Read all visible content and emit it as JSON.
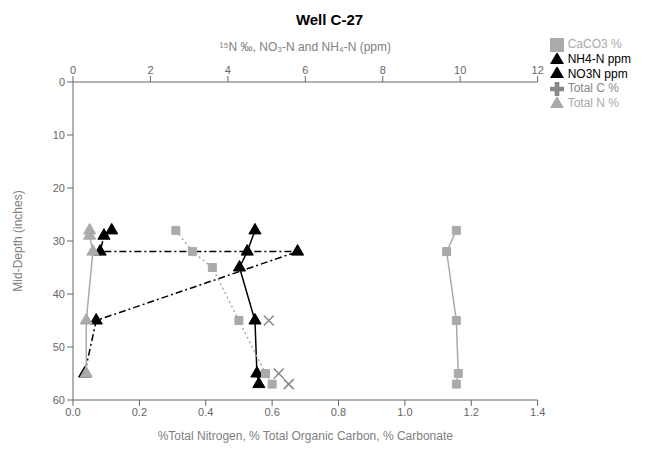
{
  "chart_data": {
    "type": "line",
    "title": "Well C-27",
    "xlabel": "%Total Nitrogen, % Total Organic Carbon, % Carbonate",
    "x2label": "¹⁵N ‰, NO₃-N and NH₄-N (ppm)",
    "ylabel": "Mid-Depth (inches)",
    "xlim": [
      0.0,
      1.4
    ],
    "xticks": [
      {
        "value": 0,
        "label": "0.0"
      },
      0.2,
      0.4,
      0.6,
      0.8,
      {
        "value": 1,
        "label": "1.0"
      },
      1.2,
      1.4
    ],
    "x2lim": [
      0,
      12
    ],
    "x2ticks": [
      0,
      2,
      4,
      6,
      8,
      10,
      12
    ],
    "ylim": [
      0,
      60
    ],
    "yticks": [
      0,
      10,
      20,
      30,
      40,
      50,
      60
    ],
    "grid": false,
    "legend": "upper right",
    "series": [
      {
        "name": "NO3N ppm",
        "axis": "x2",
        "x": [
          1.0,
          0.8,
          0.7,
          5.8,
          0.6,
          0.3
        ],
        "y": [
          28,
          29,
          32,
          32,
          45,
          55
        ],
        "color": "black",
        "line_style": "dashdot",
        "marker": "triangle"
      },
      {
        "name": "Total N %",
        "x": [
          0.05,
          0.05,
          0.06,
          0.04,
          0.04
        ],
        "y": [
          28,
          29,
          32,
          45,
          55
        ],
        "color": "#aaaaaa",
        "line_style": "solid",
        "marker": "triangle"
      },
      {
        "name": "Total C %",
        "x": [
          0.59,
          0.62,
          0.65
        ],
        "y": [
          45,
          55,
          57
        ],
        "color": "#888888",
        "line_style": "none",
        "marker": "x"
      },
      {
        "name": "NH4-N ppm",
        "axis": "x2",
        "x": [
          4.7,
          4.5,
          4.3,
          4.7,
          4.75,
          4.8
        ],
        "y": [
          28,
          32,
          35,
          45,
          55,
          57
        ],
        "color": "black",
        "line_style": "solid",
        "marker": "triangle"
      },
      {
        "axis": "x2",
        "x": [
          9.9,
          9.65,
          9.9,
          9.95,
          9.9
        ],
        "y": [
          28,
          32,
          45,
          55,
          57
        ],
        "color": "#aaaaaa",
        "line_style": "solid",
        "marker": "square"
      },
      {
        "name": "CaCO3 %",
        "x": [
          0.31,
          0.36,
          0.42,
          0.5,
          0.58,
          0.6
        ],
        "y": [
          28,
          32,
          35,
          45,
          55,
          57
        ],
        "color": "#aaaaaa",
        "line_style": "dotted",
        "marker": "square"
      }
    ]
  }
}
